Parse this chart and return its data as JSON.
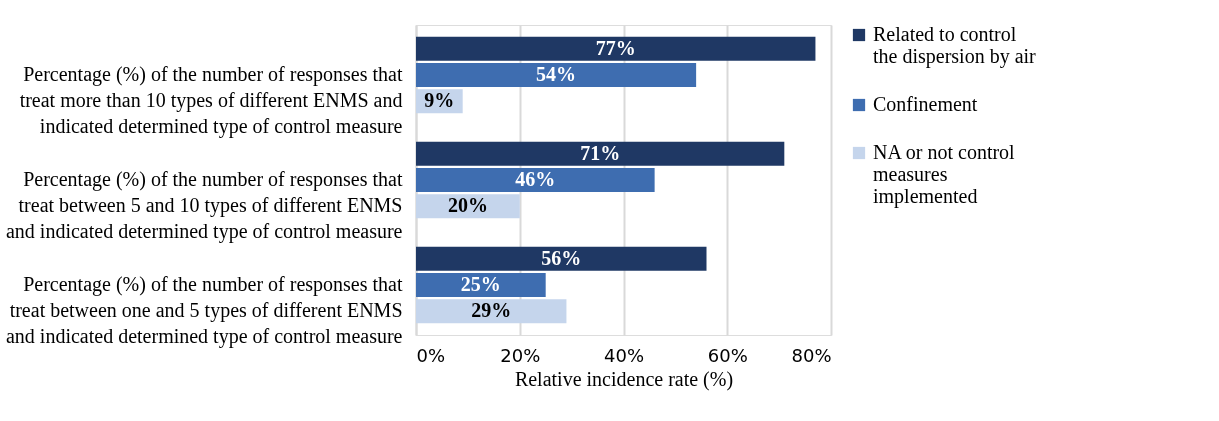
{
  "chart_data": {
    "type": "bar",
    "orientation": "horizontal",
    "xlabel": "Relative incidence rate (%)",
    "categories": [
      "Percentage (%) of the number of  responses that\ntreat more than 10 types of different ENMS and\nindicated determined type of control measure",
      "Percentage (%) of the number of  responses that\ntreat between 5 and 10 types of different ENMS\nand indicated determined type of control measure",
      "Percentage (%) of the number of  responses that\ntreat between one and 5 types of different ENMS\nand indicated determined type of control measure"
    ],
    "series": [
      {
        "name": "Related to control\nthe dispersion by air",
        "color": "#1f3864",
        "values": [
          77,
          71,
          56
        ],
        "value_labels": [
          "77%",
          "71%",
          "56%"
        ]
      },
      {
        "name": "Confinement",
        "color": "#3e6db0",
        "values": [
          54,
          46,
          25
        ],
        "value_labels": [
          "54%",
          "46%",
          "25%"
        ]
      },
      {
        "name": "NA or not control\nmeasures\nimplemented",
        "color": "#c5d5ec",
        "values": [
          9,
          20,
          29
        ],
        "value_labels": [
          "9%",
          "20%",
          "29%"
        ]
      }
    ],
    "xlim": [
      0,
      80
    ],
    "xticks": [
      {
        "value": 0,
        "label": "0%"
      },
      {
        "value": 20,
        "label": "20%"
      },
      {
        "value": 40,
        "label": "40%"
      },
      {
        "value": 60,
        "label": "60%"
      },
      {
        "value": 80,
        "label": "80%"
      }
    ],
    "grid": "x",
    "legend": "right"
  }
}
